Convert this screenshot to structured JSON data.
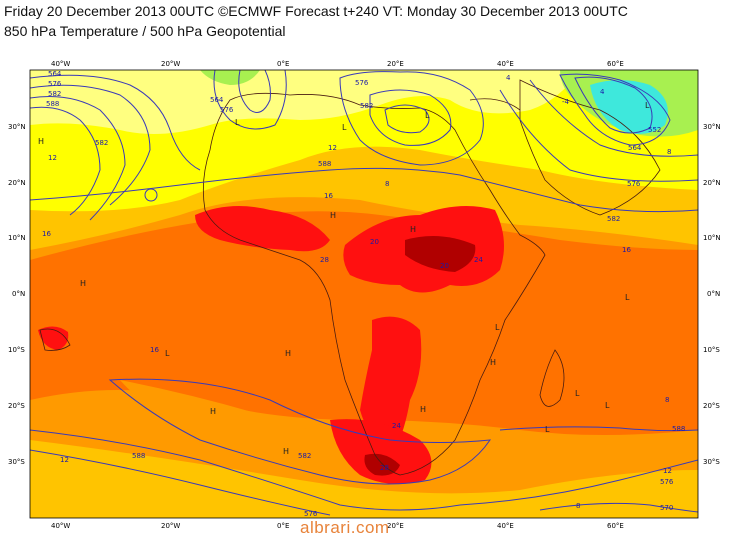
{
  "title_line1": "Friday 20 December 2013 00UTC ©ECMWF Forecast t+240 VT: Monday 30 December 2013 00UTC",
  "title_line2": "850 hPa Temperature / 500 hPa Geopotential",
  "axes": {
    "lon_labels": [
      "40°W",
      "20°W",
      "0°E",
      "20°E",
      "40°E",
      "60°E"
    ],
    "lat_labels": [
      "30°N",
      "20°N",
      "10°N",
      "0°N",
      "10°S",
      "20°S",
      "30°S"
    ]
  },
  "contour_labels": [
    "564",
    "576",
    "582",
    "588",
    "564",
    "576",
    "582",
    "588",
    "576",
    "582",
    "552",
    "564",
    "576",
    "582",
    "588",
    "588",
    "576",
    "582",
    "570",
    "576",
    "12",
    "16",
    "20",
    "24",
    "28",
    "16",
    "16",
    "16",
    "12",
    "12",
    "8",
    "8",
    "4",
    "4",
    "-4",
    "24",
    "28",
    "20",
    "12",
    "8",
    "8"
  ],
  "pressure_centres": [
    "H",
    "H",
    "H",
    "H",
    "H",
    "H",
    "H",
    "H",
    "H",
    "L",
    "L",
    "L",
    "L",
    "L",
    "L",
    "L",
    "L",
    "L",
    "L"
  ],
  "palette": {
    "cold_cyan": "#3ee8dc",
    "cool_green": "#a8f050",
    "pale_yellow": "#ffff80",
    "yellow": "#ffff00",
    "gold": "#ffc400",
    "orange": "#ff9a00",
    "dark_orange": "#ff7200",
    "red": "#ff1010",
    "dark_red": "#b00000",
    "contour": "#3a3ab8",
    "coast": "#4a1c10"
  },
  "watermark": "albrari.com"
}
